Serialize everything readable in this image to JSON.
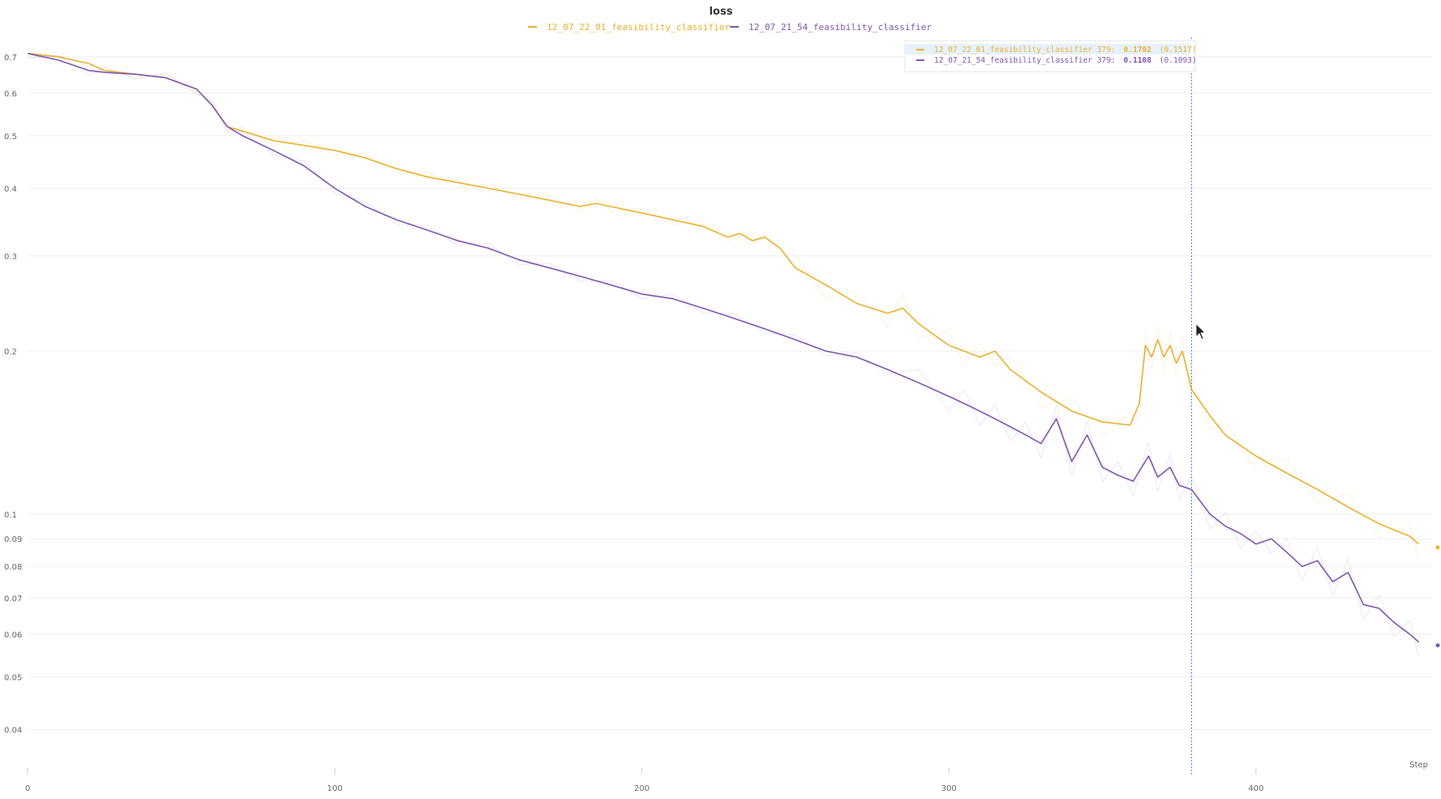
{
  "chart_data": {
    "type": "line",
    "title": "loss",
    "xlabel": "Step",
    "ylabel": "",
    "y_scale": "log",
    "xlim": [
      0,
      456
    ],
    "ylim": [
      0.033,
      0.76
    ],
    "x_ticks": [
      0,
      100,
      200,
      300,
      400
    ],
    "y_ticks": [
      0.7,
      0.6,
      0.5,
      0.4,
      0.3,
      0.2,
      0.1,
      0.09,
      0.08,
      0.07,
      0.06,
      0.05,
      0.04
    ],
    "y_tick_labels": [
      "0.7",
      "0.6",
      "0.5",
      "0.4",
      "0.3",
      "0.2",
      "0.1",
      "0.09",
      "0.08",
      "0.07",
      "0.06",
      "0.05",
      "0.04"
    ],
    "x_tick_labels": [
      "0",
      "100",
      "200",
      "300",
      "400"
    ],
    "grid": true,
    "legend_position": "top-center",
    "series": [
      {
        "name": "12_07_22_01_feasibility_classifier",
        "color": "#e9b12f",
        "x": [
          0,
          10,
          20,
          25,
          35,
          45,
          55,
          60,
          65,
          70,
          80,
          90,
          100,
          110,
          120,
          130,
          140,
          150,
          160,
          170,
          180,
          185,
          190,
          200,
          210,
          220,
          228,
          232,
          236,
          240,
          245,
          250,
          260,
          270,
          280,
          285,
          290,
          300,
          305,
          310,
          315,
          320,
          330,
          340,
          350,
          359,
          362,
          364,
          366,
          368,
          370,
          372,
          374,
          376,
          378,
          379,
          385,
          390,
          400,
          410,
          420,
          430,
          440,
          450,
          453
        ],
        "y": [
          0.71,
          0.7,
          0.68,
          0.66,
          0.65,
          0.64,
          0.61,
          0.57,
          0.52,
          0.51,
          0.49,
          0.48,
          0.47,
          0.455,
          0.435,
          0.42,
          0.41,
          0.4,
          0.39,
          0.38,
          0.37,
          0.375,
          0.37,
          0.36,
          0.35,
          0.34,
          0.325,
          0.33,
          0.32,
          0.325,
          0.31,
          0.285,
          0.265,
          0.245,
          0.235,
          0.24,
          0.225,
          0.205,
          0.2,
          0.195,
          0.2,
          0.185,
          0.168,
          0.155,
          0.148,
          0.146,
          0.16,
          0.205,
          0.195,
          0.21,
          0.195,
          0.205,
          0.19,
          0.2,
          0.18,
          0.17,
          0.152,
          0.14,
          0.128,
          0.119,
          0.111,
          0.103,
          0.096,
          0.091,
          0.088
        ]
      },
      {
        "name": "12_07_21_54_feasibility_classifier",
        "color": "#7e57b2",
        "x": [
          0,
          10,
          20,
          25,
          35,
          45,
          55,
          60,
          65,
          70,
          80,
          90,
          100,
          110,
          120,
          130,
          140,
          150,
          160,
          170,
          180,
          190,
          200,
          210,
          220,
          230,
          240,
          250,
          260,
          270,
          280,
          290,
          300,
          305,
          310,
          315,
          320,
          325,
          330,
          335,
          340,
          345,
          350,
          355,
          360,
          365,
          368,
          372,
          375,
          379,
          385,
          390,
          395,
          400,
          405,
          410,
          415,
          420,
          425,
          430,
          435,
          440,
          445,
          450,
          453
        ],
        "y": [
          0.71,
          0.69,
          0.66,
          0.655,
          0.65,
          0.64,
          0.61,
          0.57,
          0.52,
          0.5,
          0.47,
          0.44,
          0.4,
          0.37,
          0.35,
          0.335,
          0.32,
          0.31,
          0.295,
          0.285,
          0.275,
          0.265,
          0.255,
          0.25,
          0.24,
          0.23,
          0.22,
          0.21,
          0.2,
          0.195,
          0.185,
          0.175,
          0.165,
          0.16,
          0.155,
          0.15,
          0.145,
          0.14,
          0.135,
          0.15,
          0.125,
          0.14,
          0.122,
          0.118,
          0.115,
          0.128,
          0.117,
          0.122,
          0.113,
          0.111,
          0.1,
          0.095,
          0.092,
          0.088,
          0.09,
          0.085,
          0.08,
          0.082,
          0.075,
          0.078,
          0.068,
          0.067,
          0.063,
          0.06,
          0.058
        ]
      }
    ],
    "hover": {
      "step": 379,
      "rows": [
        {
          "label": "12_07_22_01_feasibility_classifier 379:",
          "value": "0.1702",
          "smoothed": "(0.1517)",
          "color": "#e9b12f"
        },
        {
          "label": "12_07_21_54_feasibility_classifier 379:",
          "value": "0.1108",
          "smoothed": "(0.1093)",
          "color": "#7e57b2"
        }
      ]
    }
  }
}
